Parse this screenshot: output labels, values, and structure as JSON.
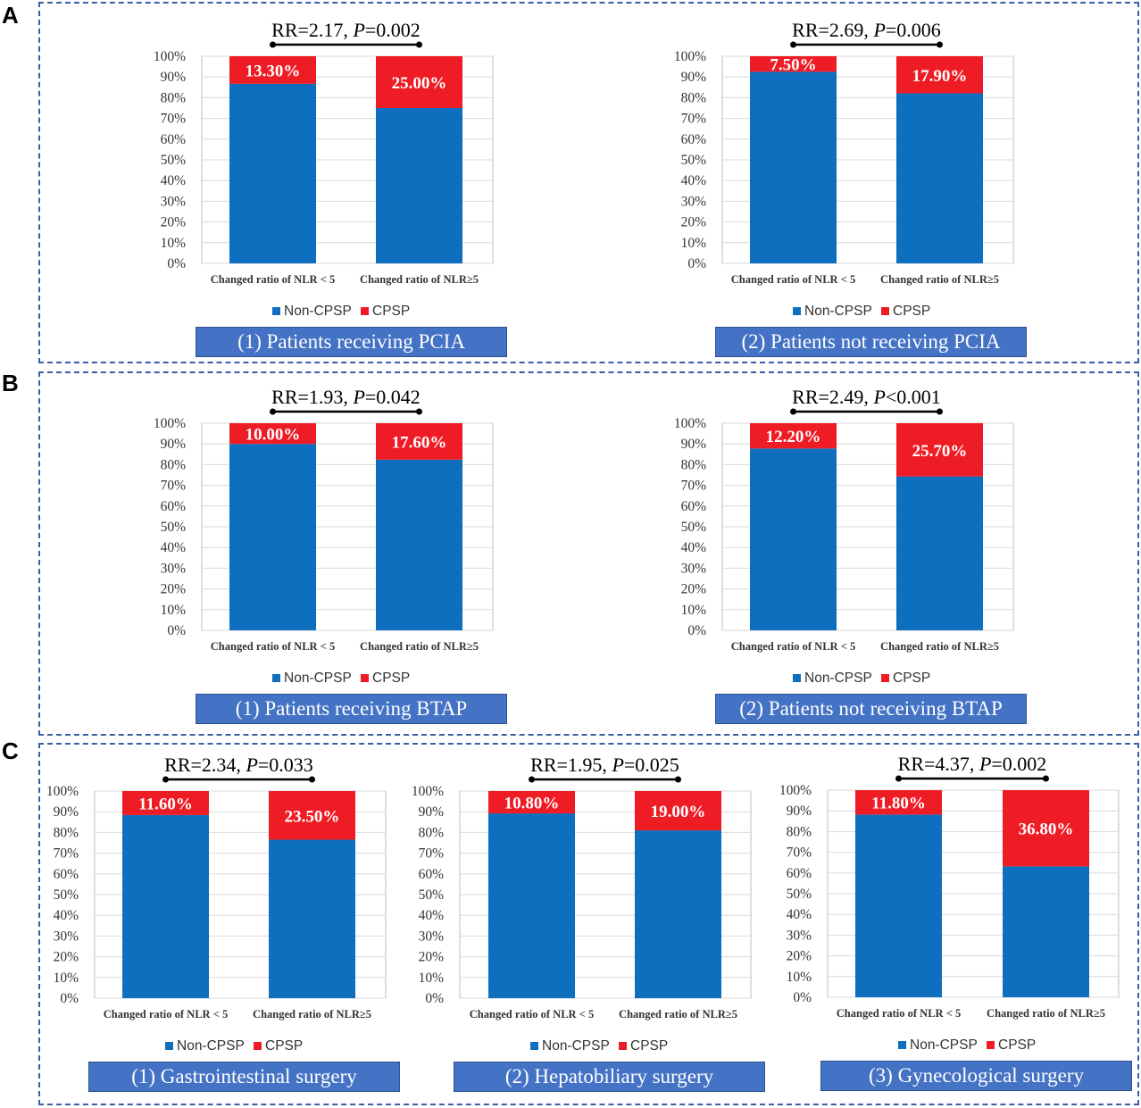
{
  "panels": [
    {
      "letter": "A"
    },
    {
      "letter": "B"
    },
    {
      "letter": "C"
    }
  ],
  "colors": {
    "non_cpsp": "#0f6fbf",
    "cpsp": "#ee1c25",
    "border": "#3a5fa8",
    "subtitle_bg": "#4472c4"
  },
  "chart_data": [
    {
      "type": "bar",
      "stacked": true,
      "panel": "A",
      "subtitle": "(1) Patients receiving PCIA",
      "annotation": {
        "prefix": "RR=2.17, ",
        "p_symbol": "P",
        "p_value": "=0.002"
      },
      "categories": [
        "Changed ratio of NLR < 5",
        "Changed ratio of NLR≥5"
      ],
      "series": [
        {
          "name": "Non-CPSP",
          "values": [
            86.7,
            75.0
          ]
        },
        {
          "name": "CPSP",
          "values": [
            13.3,
            25.0
          ]
        }
      ],
      "data_labels": [
        "13.30%",
        "25.00%"
      ],
      "yticks": [
        "0%",
        "10%",
        "20%",
        "30%",
        "40%",
        "50%",
        "60%",
        "70%",
        "80%",
        "90%",
        "100%"
      ],
      "ylim": [
        0,
        100
      ]
    },
    {
      "type": "bar",
      "stacked": true,
      "panel": "A",
      "subtitle": "(2) Patients not receiving PCIA",
      "annotation": {
        "prefix": "RR=2.69, ",
        "p_symbol": "P",
        "p_value": "=0.006"
      },
      "categories": [
        "Changed ratio of NLR < 5",
        "Changed ratio of NLR≥5"
      ],
      "series": [
        {
          "name": "Non-CPSP",
          "values": [
            92.5,
            82.1
          ]
        },
        {
          "name": "CPSP",
          "values": [
            7.5,
            17.9
          ]
        }
      ],
      "data_labels": [
        "7.50%",
        "17.90%"
      ],
      "yticks": [
        "0%",
        "10%",
        "20%",
        "30%",
        "40%",
        "50%",
        "60%",
        "70%",
        "80%",
        "90%",
        "100%"
      ],
      "ylim": [
        0,
        100
      ]
    },
    {
      "type": "bar",
      "stacked": true,
      "panel": "B",
      "subtitle": "(1) Patients receiving BTAP",
      "annotation": {
        "prefix": "RR=1.93, ",
        "p_symbol": "P",
        "p_value": "=0.042"
      },
      "categories": [
        "Changed ratio of NLR < 5",
        "Changed ratio of NLR≥5"
      ],
      "series": [
        {
          "name": "Non-CPSP",
          "values": [
            90.0,
            82.4
          ]
        },
        {
          "name": "CPSP",
          "values": [
            10.0,
            17.6
          ]
        }
      ],
      "data_labels": [
        "10.00%",
        "17.60%"
      ],
      "yticks": [
        "0%",
        "10%",
        "20%",
        "30%",
        "40%",
        "50%",
        "60%",
        "70%",
        "80%",
        "90%",
        "100%"
      ],
      "ylim": [
        0,
        100
      ]
    },
    {
      "type": "bar",
      "stacked": true,
      "panel": "B",
      "subtitle": "(2) Patients not receiving BTAP",
      "annotation": {
        "prefix": "RR=2.49, ",
        "p_symbol": "P",
        "p_value": "<0.001"
      },
      "categories": [
        "Changed ratio of NLR < 5",
        "Changed ratio of NLR≥5"
      ],
      "series": [
        {
          "name": "Non-CPSP",
          "values": [
            87.8,
            74.3
          ]
        },
        {
          "name": "CPSP",
          "values": [
            12.2,
            25.7
          ]
        }
      ],
      "data_labels": [
        "12.20%",
        "25.70%"
      ],
      "yticks": [
        "0%",
        "10%",
        "20%",
        "30%",
        "40%",
        "50%",
        "60%",
        "70%",
        "80%",
        "90%",
        "100%"
      ],
      "ylim": [
        0,
        100
      ]
    },
    {
      "type": "bar",
      "stacked": true,
      "panel": "C",
      "subtitle": "(1) Gastrointestinal surgery",
      "annotation": {
        "prefix": "RR=2.34, ",
        "p_symbol": "P",
        "p_value": "=0.033"
      },
      "categories": [
        "Changed ratio of NLR < 5",
        "Changed ratio of NLR≥5"
      ],
      "series": [
        {
          "name": "Non-CPSP",
          "values": [
            88.4,
            76.5
          ]
        },
        {
          "name": "CPSP",
          "values": [
            11.6,
            23.5
          ]
        }
      ],
      "data_labels": [
        "11.60%",
        "23.50%"
      ],
      "yticks": [
        "0%",
        "10%",
        "20%",
        "30%",
        "40%",
        "50%",
        "60%",
        "70%",
        "80%",
        "90%",
        "100%"
      ],
      "ylim": [
        0,
        100
      ]
    },
    {
      "type": "bar",
      "stacked": true,
      "panel": "C",
      "subtitle": "(2) Hepatobiliary surgery",
      "annotation": {
        "prefix": "RR=1.95, ",
        "p_symbol": "P",
        "p_value": "=0.025"
      },
      "categories": [
        "Changed ratio of NLR < 5",
        "Changed ratio of NLR≥5"
      ],
      "series": [
        {
          "name": "Non-CPSP",
          "values": [
            89.2,
            81.0
          ]
        },
        {
          "name": "CPSP",
          "values": [
            10.8,
            19.0
          ]
        }
      ],
      "data_labels": [
        "10.80%",
        "19.00%"
      ],
      "yticks": [
        "0%",
        "10%",
        "20%",
        "30%",
        "40%",
        "50%",
        "60%",
        "70%",
        "80%",
        "90%",
        "100%"
      ],
      "ylim": [
        0,
        100
      ]
    },
    {
      "type": "bar",
      "stacked": true,
      "panel": "C",
      "subtitle": "(3) Gynecological surgery",
      "annotation": {
        "prefix": "RR=4.37, ",
        "p_symbol": "P",
        "p_value": "=0.002"
      },
      "categories": [
        "Changed ratio of NLR < 5",
        "Changed ratio of NLR≥5"
      ],
      "series": [
        {
          "name": "Non-CPSP",
          "values": [
            88.2,
            63.2
          ]
        },
        {
          "name": "CPSP",
          "values": [
            11.8,
            36.8
          ]
        }
      ],
      "data_labels": [
        "11.80%",
        "36.80%"
      ],
      "yticks": [
        "0%",
        "10%",
        "20%",
        "30%",
        "40%",
        "50%",
        "60%",
        "70%",
        "80%",
        "90%",
        "100%"
      ],
      "ylim": [
        0,
        100
      ]
    }
  ]
}
